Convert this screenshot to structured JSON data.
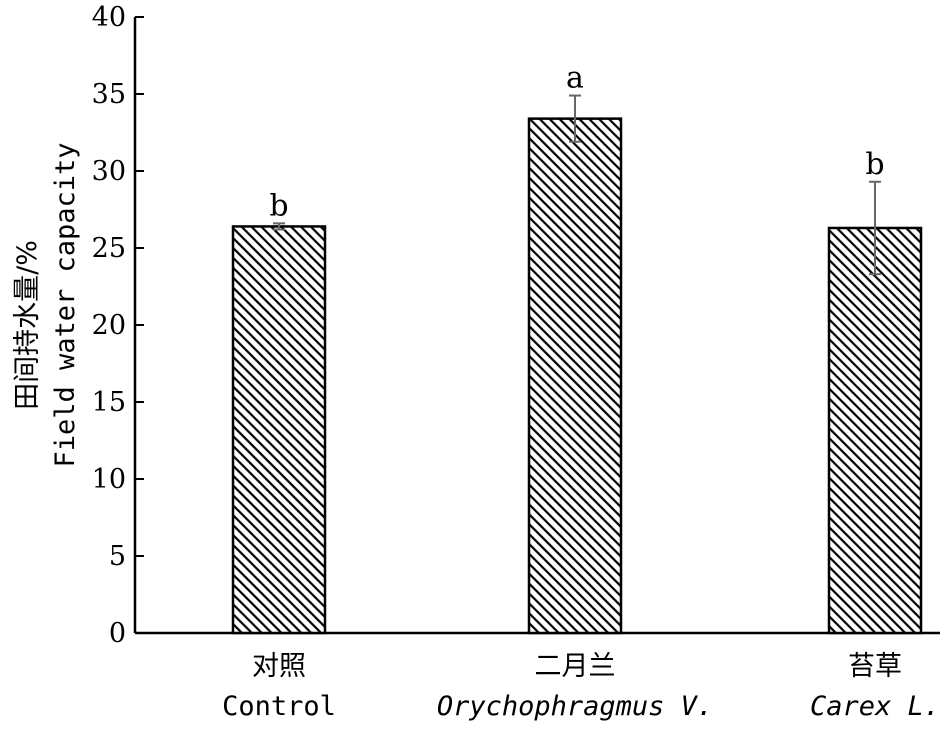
{
  "chart_data": {
    "type": "bar",
    "ylabel_cn": "田间持水量/%",
    "ylabel_en": "Field water capacity",
    "ylim": [
      0,
      40
    ],
    "yticks": [
      0,
      5,
      10,
      15,
      20,
      25,
      30,
      35,
      40
    ],
    "categories": [
      {
        "cn": "对照",
        "en": "Control",
        "italic": false
      },
      {
        "cn": "二月兰",
        "en": "Orychophragmus V.",
        "italic": true
      },
      {
        "cn": "苔草",
        "en": "Carex L.",
        "italic": true
      }
    ],
    "values": [
      26.4,
      33.4,
      26.3
    ],
    "errors": [
      0.2,
      1.5,
      3.0
    ],
    "significance": [
      "b",
      "a",
      "b"
    ],
    "bar_fill": "hatched",
    "error_color": "#666666"
  }
}
